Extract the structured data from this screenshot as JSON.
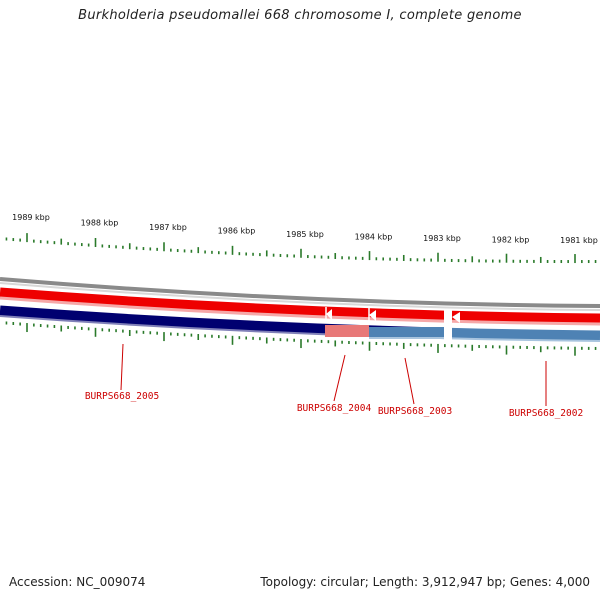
{
  "title": "Burkholderia pseudomallei 668 chromosome I, complete genome",
  "footer": {
    "accession": "Accession: NC_009074",
    "summary": "Topology: circular; Length: 3,912,947 bp; Genes: 4,000"
  },
  "scale": {
    "ticks": [
      {
        "label": "1989 kbp",
        "kbp": 1989
      },
      {
        "label": "1988 kbp",
        "kbp": 1988
      },
      {
        "label": "1987 kbp",
        "kbp": 1987
      },
      {
        "label": "1986 kbp",
        "kbp": 1986
      },
      {
        "label": "1985 kbp",
        "kbp": 1985
      },
      {
        "label": "1984 kbp",
        "kbp": 1984
      },
      {
        "label": "1983 kbp",
        "kbp": 1983
      },
      {
        "label": "1982 kbp",
        "kbp": 1982
      },
      {
        "label": "1981 kbp",
        "kbp": 1981
      }
    ]
  },
  "genes": [
    {
      "label": "BURPS668_2005"
    },
    {
      "label": "BURPS668_2004"
    },
    {
      "label": "BURPS668_2003"
    },
    {
      "label": "BURPS668_2002"
    }
  ],
  "colors": {
    "backbone": "#8a8a8a",
    "cds_forward": "#ee0000",
    "cds_forward_light": "#f6a8a8",
    "gene_dark": "#000070",
    "gene_pink": "#e87878",
    "gene_steel": "#4e82b4",
    "tick": "#2a7a2a",
    "label": "#cc0000"
  }
}
